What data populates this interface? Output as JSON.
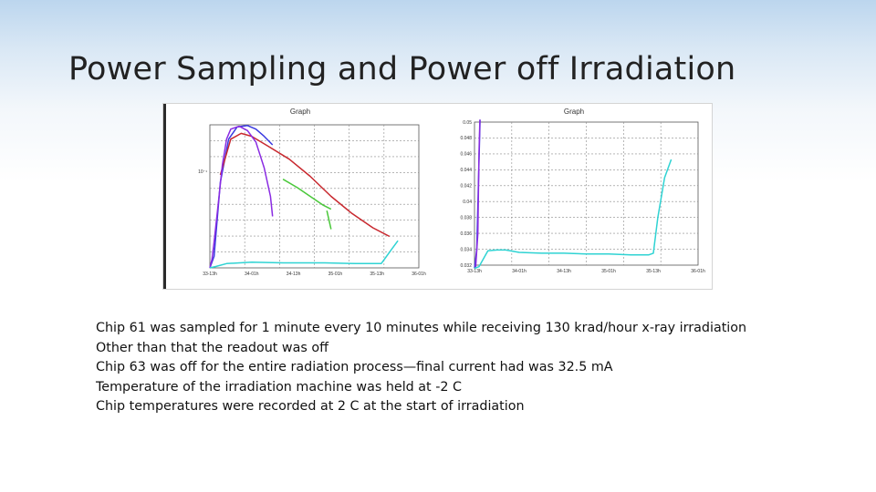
{
  "slide": {
    "title": "Power Sampling and Power off Irradiation",
    "bullets": [
      "Chip 61 was sampled for 1 minute every 10 minutes while receiving 130 krad/hour x-ray irradiation",
      "Other than that the readout was off",
      "Chip 63 was off for the entire radiation process—final current had was 32.5 mA",
      "Temperature of the irradiation machine was held at -2 C",
      "Chip temperatures were recorded at 2 C at the start of irradiation"
    ]
  },
  "chart_data": [
    {
      "type": "line",
      "title": "Graph",
      "xlabel": "",
      "ylabel": "",
      "y_scale": "log",
      "grid": true,
      "x_tick_labels": [
        "33-13h",
        "34-01h",
        "34-13h",
        "35-01h",
        "35-13h",
        "36-01h"
      ],
      "y_tick_labels": [
        "10⁻¹"
      ],
      "colors": {
        "blue": "#3a3ae0",
        "red": "#c8282e",
        "purple": "#8a2be2",
        "green": "#4ac83a",
        "cyan": "#2fd3d3"
      },
      "series": [
        {
          "color": "blue",
          "x": [
            0.0,
            0.02,
            0.05,
            0.09,
            0.13,
            0.18,
            0.22,
            0.26,
            0.3
          ],
          "y": [
            0.0,
            0.08,
            0.6,
            0.9,
            0.985,
            0.995,
            0.97,
            0.92,
            0.86
          ]
        },
        {
          "color": "red",
          "x": [
            0.05,
            0.1,
            0.15,
            0.2,
            0.28,
            0.38,
            0.48,
            0.58,
            0.68,
            0.78,
            0.86
          ],
          "y": [
            0.65,
            0.9,
            0.94,
            0.92,
            0.85,
            0.76,
            0.64,
            0.5,
            0.38,
            0.28,
            0.22
          ]
        },
        {
          "color": "purple",
          "x": [
            0.0,
            0.01,
            0.02,
            0.04,
            0.06,
            0.08,
            0.1,
            0.14,
            0.18,
            0.22,
            0.26,
            0.29,
            0.3
          ],
          "y": [
            0.0,
            0.06,
            0.18,
            0.45,
            0.72,
            0.9,
            0.97,
            0.99,
            0.96,
            0.88,
            0.7,
            0.5,
            0.36
          ]
        },
        {
          "color": "green",
          "x": [
            0.35,
            0.42,
            0.48,
            0.54,
            0.58
          ],
          "y": [
            0.62,
            0.56,
            0.5,
            0.44,
            0.41
          ]
        },
        {
          "color": "green",
          "x": [
            0.56,
            0.58
          ],
          "y": [
            0.4,
            0.27
          ]
        },
        {
          "color": "cyan",
          "x": [
            0.0,
            0.03,
            0.08,
            0.2,
            0.35,
            0.55,
            0.7,
            0.82,
            0.84,
            0.87,
            0.9
          ],
          "y": [
            0.0,
            0.01,
            0.03,
            0.04,
            0.035,
            0.035,
            0.03,
            0.03,
            0.07,
            0.13,
            0.19
          ]
        }
      ]
    },
    {
      "type": "line",
      "title": "Graph",
      "xlabel": "",
      "ylabel": "",
      "grid": true,
      "ylim": [
        0.032,
        0.05
      ],
      "x_tick_labels": [
        "33-13h",
        "34-01h",
        "34-13h",
        "35-01h",
        "35-13h",
        "36-01h"
      ],
      "y_tick_labels": [
        "0.032",
        "0.034",
        "0.036",
        "0.038",
        "0.04",
        "0.042",
        "0.044",
        "0.046",
        "0.048",
        "0.05"
      ],
      "colors": {
        "blue": "#3a3ae0",
        "purple": "#8a2be2",
        "cyan": "#2fd3d3"
      },
      "series": [
        {
          "color": "blue",
          "x": [
            0.0,
            0.01,
            0.02,
            0.025
          ],
          "y": [
            0.0316,
            0.034,
            0.045,
            0.0503
          ]
        },
        {
          "color": "purple",
          "x": [
            0.005,
            0.015,
            0.02,
            0.024
          ],
          "y": [
            0.0316,
            0.036,
            0.046,
            0.0503
          ]
        },
        {
          "color": "cyan",
          "x": [
            0.0,
            0.02,
            0.06,
            0.1,
            0.14,
            0.2,
            0.3,
            0.4,
            0.5,
            0.6,
            0.7,
            0.78,
            0.8,
            0.82,
            0.85,
            0.88
          ],
          "y": [
            0.0316,
            0.0318,
            0.0338,
            0.0339,
            0.0339,
            0.0336,
            0.0335,
            0.0335,
            0.0334,
            0.0334,
            0.0333,
            0.0333,
            0.0335,
            0.038,
            0.043,
            0.0453
          ]
        }
      ]
    }
  ]
}
